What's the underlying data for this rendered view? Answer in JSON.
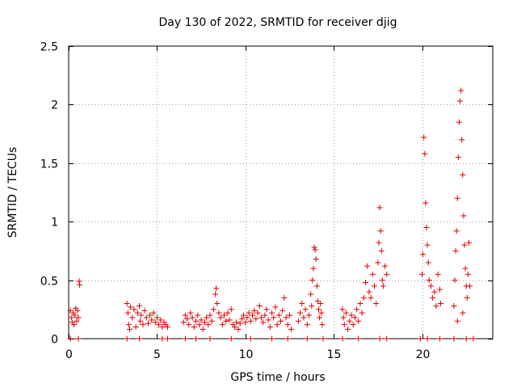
{
  "chart_data": {
    "type": "scatter",
    "title": "Day 130 of 2022, SRMTID for receiver djig",
    "xlabel": "GPS time / hours",
    "ylabel": "SRMTID / TECUs",
    "xlim": [
      0,
      24
    ],
    "ylim": [
      0,
      2.5
    ],
    "xticks": [
      0,
      5,
      10,
      15,
      20
    ],
    "xtick_labels": [
      "0",
      "5",
      "10",
      "15",
      "20"
    ],
    "yticks": [
      0,
      0.5,
      1,
      1.5,
      2,
      2.5
    ],
    "ytick_labels": [
      "0",
      "0.5",
      "1",
      "1.5",
      "2",
      "2.5"
    ],
    "grid": true,
    "marker": "plus",
    "color": "#e00000",
    "series": [
      {
        "name": "SRMTID",
        "points": [
          [
            0.1,
            0.24
          ],
          [
            0.15,
            0.18
          ],
          [
            0.2,
            0.14
          ],
          [
            0.25,
            0.22
          ],
          [
            0.3,
            0.12
          ],
          [
            0.35,
            0.2
          ],
          [
            0.4,
            0.26
          ],
          [
            0.45,
            0.15
          ],
          [
            0.5,
            0.24
          ],
          [
            0.55,
            0.18
          ],
          [
            0.6,
            0.49
          ],
          [
            0.62,
            0.46
          ],
          [
            0.55,
            0.0
          ],
          [
            0.1,
            0.0
          ],
          [
            3.3,
            0.3
          ],
          [
            3.35,
            0.22
          ],
          [
            3.4,
            0.12
          ],
          [
            3.45,
            0.08
          ],
          [
            3.5,
            0.27
          ],
          [
            3.6,
            0.18
          ],
          [
            3.7,
            0.25
          ],
          [
            3.8,
            0.1
          ],
          [
            3.9,
            0.22
          ],
          [
            4.0,
            0.28
          ],
          [
            4.05,
            0.15
          ],
          [
            4.1,
            0.2
          ],
          [
            4.2,
            0.12
          ],
          [
            4.3,
            0.24
          ],
          [
            4.4,
            0.18
          ],
          [
            4.5,
            0.13
          ],
          [
            4.6,
            0.2
          ],
          [
            4.7,
            0.16
          ],
          [
            4.8,
            0.22
          ],
          [
            4.9,
            0.14
          ],
          [
            5.0,
            0.18
          ],
          [
            5.1,
            0.12
          ],
          [
            5.2,
            0.16
          ],
          [
            5.3,
            0.1
          ],
          [
            5.4,
            0.14
          ],
          [
            5.5,
            0.12
          ],
          [
            5.6,
            0.1
          ],
          [
            3.3,
            0.0
          ],
          [
            4.0,
            0.0
          ],
          [
            5.3,
            0.0
          ],
          [
            5.6,
            0.0
          ],
          [
            6.5,
            0.14
          ],
          [
            6.6,
            0.2
          ],
          [
            6.7,
            0.17
          ],
          [
            6.8,
            0.12
          ],
          [
            6.9,
            0.22
          ],
          [
            7.0,
            0.18
          ],
          [
            7.1,
            0.1
          ],
          [
            7.2,
            0.15
          ],
          [
            7.3,
            0.2
          ],
          [
            7.4,
            0.12
          ],
          [
            7.5,
            0.16
          ],
          [
            7.6,
            0.08
          ],
          [
            7.7,
            0.14
          ],
          [
            7.8,
            0.18
          ],
          [
            7.9,
            0.12
          ],
          [
            8.0,
            0.2
          ],
          [
            8.1,
            0.15
          ],
          [
            8.2,
            0.25
          ],
          [
            8.3,
            0.38
          ],
          [
            8.35,
            0.43
          ],
          [
            8.4,
            0.3
          ],
          [
            8.5,
            0.22
          ],
          [
            8.6,
            0.18
          ],
          [
            8.7,
            0.12
          ],
          [
            8.8,
            0.2
          ],
          [
            8.9,
            0.15
          ],
          [
            9.0,
            0.22
          ],
          [
            9.1,
            0.16
          ],
          [
            9.2,
            0.25
          ],
          [
            9.3,
            0.12
          ],
          [
            9.4,
            0.1
          ],
          [
            9.5,
            0.14
          ],
          [
            9.6,
            0.08
          ],
          [
            9.7,
            0.13
          ],
          [
            9.8,
            0.17
          ],
          [
            9.9,
            0.2
          ],
          [
            10.0,
            0.14
          ],
          [
            10.1,
            0.18
          ],
          [
            10.2,
            0.22
          ],
          [
            10.3,
            0.15
          ],
          [
            10.4,
            0.2
          ],
          [
            10.5,
            0.24
          ],
          [
            10.6,
            0.17
          ],
          [
            10.7,
            0.22
          ],
          [
            10.8,
            0.28
          ],
          [
            10.9,
            0.18
          ],
          [
            11.0,
            0.14
          ],
          [
            11.1,
            0.2
          ],
          [
            11.2,
            0.25
          ],
          [
            11.3,
            0.16
          ],
          [
            11.4,
            0.1
          ],
          [
            11.5,
            0.22
          ],
          [
            11.6,
            0.18
          ],
          [
            11.7,
            0.27
          ],
          [
            11.8,
            0.12
          ],
          [
            11.9,
            0.2
          ],
          [
            12.0,
            0.15
          ],
          [
            12.1,
            0.24
          ],
          [
            12.2,
            0.35
          ],
          [
            12.3,
            0.18
          ],
          [
            12.4,
            0.12
          ],
          [
            12.5,
            0.2
          ],
          [
            12.6,
            0.08
          ],
          [
            6.6,
            0.0
          ],
          [
            7.2,
            0.0
          ],
          [
            8.0,
            0.0
          ],
          [
            9.2,
            0.0
          ],
          [
            10.3,
            0.0
          ],
          [
            11.5,
            0.0
          ],
          [
            12.4,
            0.0
          ],
          [
            13.0,
            0.15
          ],
          [
            13.1,
            0.22
          ],
          [
            13.2,
            0.3
          ],
          [
            13.3,
            0.18
          ],
          [
            13.4,
            0.25
          ],
          [
            13.5,
            0.12
          ],
          [
            13.6,
            0.2
          ],
          [
            13.7,
            0.38
          ],
          [
            13.75,
            0.28
          ],
          [
            13.8,
            0.5
          ],
          [
            13.85,
            0.6
          ],
          [
            13.9,
            0.78
          ],
          [
            13.95,
            0.76
          ],
          [
            14.0,
            0.68
          ],
          [
            14.05,
            0.45
          ],
          [
            14.1,
            0.32
          ],
          [
            14.15,
            0.25
          ],
          [
            14.2,
            0.18
          ],
          [
            14.25,
            0.3
          ],
          [
            14.3,
            0.22
          ],
          [
            14.35,
            0.12
          ],
          [
            13.5,
            0.0
          ],
          [
            14.4,
            0.0
          ],
          [
            15.5,
            0.25
          ],
          [
            15.55,
            0.18
          ],
          [
            15.6,
            0.12
          ],
          [
            15.7,
            0.22
          ],
          [
            15.8,
            0.08
          ],
          [
            15.9,
            0.15
          ],
          [
            16.0,
            0.2
          ],
          [
            16.1,
            0.12
          ],
          [
            16.2,
            0.18
          ],
          [
            16.3,
            0.25
          ],
          [
            16.4,
            0.15
          ],
          [
            16.5,
            0.3
          ],
          [
            16.6,
            0.22
          ],
          [
            16.7,
            0.35
          ],
          [
            16.8,
            0.48
          ],
          [
            16.9,
            0.62
          ],
          [
            17.0,
            0.4
          ],
          [
            17.1,
            0.35
          ],
          [
            17.2,
            0.55
          ],
          [
            17.3,
            0.45
          ],
          [
            17.4,
            0.3
          ],
          [
            17.5,
            0.65
          ],
          [
            17.55,
            0.82
          ],
          [
            17.6,
            1.12
          ],
          [
            17.65,
            0.92
          ],
          [
            17.7,
            0.75
          ],
          [
            17.75,
            0.5
          ],
          [
            17.8,
            0.45
          ],
          [
            17.9,
            0.62
          ],
          [
            18.0,
            0.55
          ],
          [
            15.5,
            0.0
          ],
          [
            16.4,
            0.0
          ],
          [
            17.6,
            0.0
          ],
          [
            18.0,
            0.0
          ],
          [
            19.9,
            0.0
          ],
          [
            20.0,
            0.55
          ],
          [
            20.05,
            0.72
          ],
          [
            20.1,
            1.72
          ],
          [
            20.15,
            1.58
          ],
          [
            20.2,
            1.16
          ],
          [
            20.25,
            0.95
          ],
          [
            20.3,
            0.8
          ],
          [
            20.35,
            0.65
          ],
          [
            20.4,
            0.5
          ],
          [
            20.5,
            0.45
          ],
          [
            20.6,
            0.35
          ],
          [
            20.7,
            0.4
          ],
          [
            20.8,
            0.28
          ],
          [
            20.9,
            0.55
          ],
          [
            21.0,
            0.42
          ],
          [
            21.05,
            0.3
          ],
          [
            20.3,
            0.0
          ],
          [
            21.0,
            0.0
          ],
          [
            21.8,
            0.28
          ],
          [
            21.85,
            0.5
          ],
          [
            21.9,
            0.75
          ],
          [
            21.95,
            0.92
          ],
          [
            22.0,
            1.2
          ],
          [
            22.05,
            1.55
          ],
          [
            22.1,
            1.85
          ],
          [
            22.15,
            2.03
          ],
          [
            22.2,
            2.12
          ],
          [
            22.25,
            1.7
          ],
          [
            22.3,
            1.4
          ],
          [
            22.35,
            1.05
          ],
          [
            22.4,
            0.8
          ],
          [
            22.45,
            0.6
          ],
          [
            22.5,
            0.45
          ],
          [
            22.55,
            0.35
          ],
          [
            22.6,
            0.55
          ],
          [
            22.65,
            0.82
          ],
          [
            22.7,
            0.45
          ],
          [
            22.3,
            0.22
          ],
          [
            22.0,
            0.15
          ],
          [
            21.8,
            0.0
          ],
          [
            22.5,
            0.0
          ],
          [
            22.9,
            0.0
          ]
        ]
      }
    ]
  }
}
